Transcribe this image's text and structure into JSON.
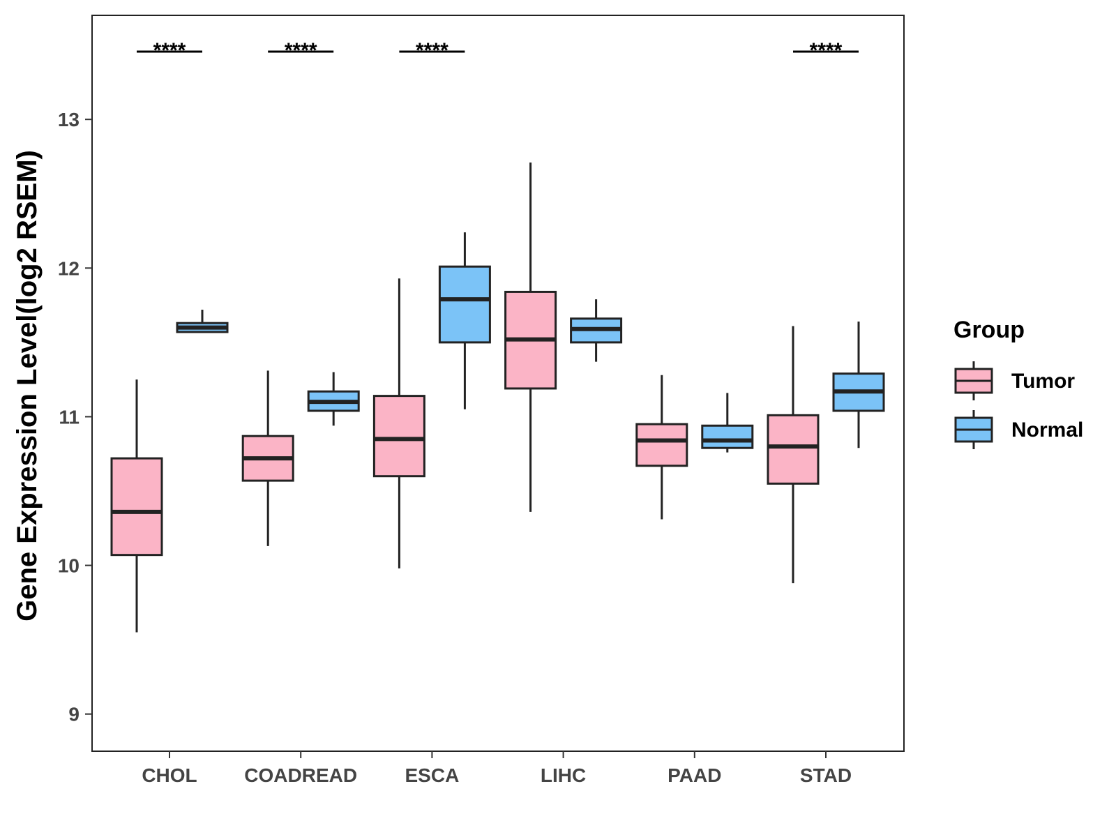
{
  "chart_data": {
    "type": "boxplot",
    "title": "",
    "xlabel": "",
    "ylabel": "Gene Expression Level(log2 RSEM)",
    "ylim": [
      8.75,
      13.7
    ],
    "yticks": [
      9,
      10,
      11,
      12,
      13
    ],
    "categories": [
      "CHOL",
      "COADREAD",
      "ESCA",
      "LIHC",
      "PAAD",
      "STAD"
    ],
    "legend": {
      "title": "Group",
      "position": "right",
      "entries": [
        {
          "name": "Tumor",
          "color": "#FBB4C6"
        },
        {
          "name": "Normal",
          "color": "#7BC3F7"
        }
      ]
    },
    "series": [
      {
        "name": "Tumor",
        "color": "#FBB4C6",
        "boxes": [
          {
            "category": "CHOL",
            "min": 9.55,
            "q1": 10.07,
            "median": 10.36,
            "q3": 10.72,
            "max": 11.25
          },
          {
            "category": "COADREAD",
            "min": 10.13,
            "q1": 10.57,
            "median": 10.72,
            "q3": 10.87,
            "max": 11.31
          },
          {
            "category": "ESCA",
            "min": 9.98,
            "q1": 10.6,
            "median": 10.85,
            "q3": 11.14,
            "max": 11.93
          },
          {
            "category": "LIHC",
            "min": 10.36,
            "q1": 11.19,
            "median": 11.52,
            "q3": 11.84,
            "max": 12.71
          },
          {
            "category": "PAAD",
            "min": 10.31,
            "q1": 10.67,
            "median": 10.84,
            "q3": 10.95,
            "max": 11.28
          },
          {
            "category": "STAD",
            "min": 9.88,
            "q1": 10.55,
            "median": 10.8,
            "q3": 11.01,
            "max": 11.61
          }
        ]
      },
      {
        "name": "Normal",
        "color": "#7BC3F7",
        "boxes": [
          {
            "category": "CHOL",
            "min": 11.57,
            "q1": 11.57,
            "median": 11.6,
            "q3": 11.63,
            "max": 11.72
          },
          {
            "category": "COADREAD",
            "min": 10.94,
            "q1": 11.04,
            "median": 11.1,
            "q3": 11.17,
            "max": 11.3
          },
          {
            "category": "ESCA",
            "min": 11.05,
            "q1": 11.5,
            "median": 11.79,
            "q3": 12.01,
            "max": 12.24
          },
          {
            "category": "LIHC",
            "min": 11.37,
            "q1": 11.5,
            "median": 11.59,
            "q3": 11.66,
            "max": 11.79
          },
          {
            "category": "PAAD",
            "min": 10.76,
            "q1": 10.79,
            "median": 10.84,
            "q3": 10.94,
            "max": 11.16
          },
          {
            "category": "STAD",
            "min": 10.79,
            "q1": 11.04,
            "median": 11.17,
            "q3": 11.29,
            "max": 11.64
          }
        ]
      }
    ],
    "significance": [
      {
        "category": "CHOL",
        "label": "****"
      },
      {
        "category": "COADREAD",
        "label": "****"
      },
      {
        "category": "ESCA",
        "label": "****"
      },
      {
        "category": "STAD",
        "label": "****"
      }
    ]
  }
}
